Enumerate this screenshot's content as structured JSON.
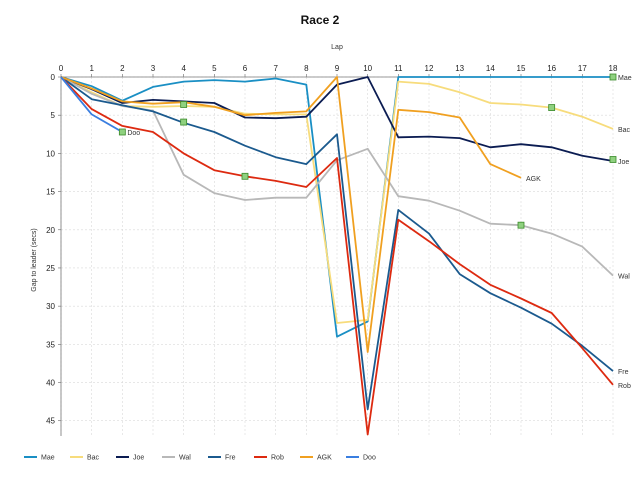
{
  "chart_data": {
    "type": "line",
    "title": "Race 2",
    "xlabel": "Lap",
    "ylabel": "Gap to leader (secs)",
    "x": [
      0,
      1,
      2,
      3,
      4,
      5,
      6,
      7,
      8,
      9,
      10,
      11,
      12,
      13,
      14,
      15,
      16,
      17,
      18
    ],
    "xlim": [
      0,
      18
    ],
    "ylim": [
      0,
      47
    ],
    "y_inverted": true,
    "yticks": [
      0,
      5,
      10,
      15,
      20,
      25,
      30,
      35,
      40,
      45
    ],
    "grid": true,
    "x_axis_position": "top",
    "legend_position": "bottom",
    "series": [
      {
        "name": "Mae",
        "color": "#1a8fc4",
        "end_label": "Mae",
        "values": [
          0,
          1.2,
          3.1,
          1.3,
          0.6,
          0.4,
          0.6,
          0.2,
          1.0,
          34.0,
          32.0,
          0,
          0,
          0,
          0,
          0,
          0,
          0,
          0
        ]
      },
      {
        "name": "Bac",
        "color": "#f7dc7c",
        "end_label": "Bac",
        "values": [
          0,
          2.0,
          3.8,
          3.9,
          3.8,
          3.9,
          4.8,
          4.9,
          4.9,
          32.2,
          31.8,
          0.6,
          0.9,
          2.0,
          3.4,
          3.6,
          4.0,
          5.2,
          6.8
        ]
      },
      {
        "name": "Joe",
        "color": "#0b1c52",
        "end_label": "Joe",
        "values": [
          0,
          1.6,
          3.4,
          3.0,
          3.2,
          3.4,
          5.3,
          5.4,
          5.2,
          1.0,
          0,
          7.9,
          7.8,
          8.0,
          9.2,
          8.8,
          9.2,
          10.3,
          11.0
        ]
      },
      {
        "name": "Wal",
        "color": "#b8b8b8",
        "end_label": "Wal",
        "values": [
          0,
          2.2,
          3.8,
          4.4,
          12.8,
          15.2,
          16.1,
          15.8,
          15.8,
          10.9,
          9.4,
          15.6,
          16.2,
          17.5,
          19.2,
          19.4,
          20.5,
          22.2,
          26.0
        ]
      },
      {
        "name": "Fre",
        "color": "#1b5a8e",
        "end_label": "Fre",
        "values": [
          0,
          2.9,
          3.7,
          4.5,
          6.0,
          7.2,
          9.0,
          10.5,
          11.4,
          7.5,
          43.5,
          17.4,
          20.5,
          25.8,
          28.3,
          30.2,
          32.3,
          35.2,
          38.5
        ]
      },
      {
        "name": "Rob",
        "color": "#dd2a10",
        "end_label": "Rob",
        "values": [
          0,
          4.2,
          6.4,
          7.2,
          10.0,
          12.2,
          13.0,
          13.6,
          14.4,
          10.6,
          46.8,
          18.7,
          21.5,
          24.5,
          27.2,
          29.0,
          30.9,
          35.5,
          40.3
        ]
      },
      {
        "name": "AGK",
        "color": "#f0a020",
        "end_label": "AGK",
        "values": [
          0,
          1.5,
          3.2,
          3.5,
          3.3,
          3.9,
          5.0,
          4.7,
          4.5,
          0,
          36.0,
          4.3,
          4.6,
          5.3,
          11.4,
          13.2,
          null,
          null,
          null
        ]
      },
      {
        "name": "Doo",
        "color": "#3a7ee0",
        "end_label": "Doo",
        "values": [
          0,
          4.9,
          7.2,
          null,
          null,
          null,
          null,
          null,
          null,
          null,
          null,
          null,
          null,
          null,
          null,
          null,
          null,
          null,
          null
        ]
      }
    ],
    "markers": [
      {
        "x": 2,
        "y": 7.2
      },
      {
        "x": 4,
        "y": 3.6
      },
      {
        "x": 4,
        "y": 5.9
      },
      {
        "x": 6,
        "y": 13.0
      },
      {
        "x": 15,
        "y": 19.4
      },
      {
        "x": 16,
        "y": 4.0
      },
      {
        "x": 18,
        "y": 0
      },
      {
        "x": 18,
        "y": 10.8
      }
    ]
  }
}
